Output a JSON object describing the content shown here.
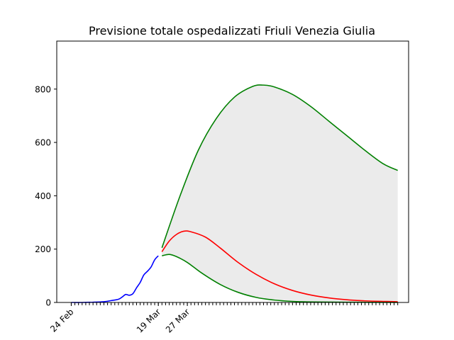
{
  "chart_data": {
    "type": "line",
    "title": "Previsione totale ospedalizzati Friuli Venezia Giulia",
    "xlabel": "",
    "ylabel": "",
    "x_axis": {
      "type": "date",
      "range": [
        "2020-02-20",
        "2020-05-27"
      ],
      "labeled_ticks": [
        {
          "date": "2020-02-24",
          "label": "24 Feb"
        },
        {
          "date": "2020-03-19",
          "label": "19 Mar"
        },
        {
          "date": "2020-03-27",
          "label": "27 Mar"
        }
      ],
      "minor_ticks": "daily, 2020-02-24 to 2020-05-24",
      "tick_label_rotation": -45
    },
    "y_axis": {
      "range": [
        0,
        980
      ],
      "ticks": [
        0,
        200,
        400,
        600,
        800
      ]
    },
    "grid": false,
    "legend": "none",
    "band": {
      "color": "#ebebeb",
      "between": [
        "green-upper",
        "green-lower"
      ]
    },
    "series": [
      {
        "id": "observed",
        "color": "#0000ff",
        "points": [
          [
            "2020-02-24",
            0
          ],
          [
            "2020-02-27",
            0
          ],
          [
            "2020-03-01",
            1
          ],
          [
            "2020-03-04",
            3
          ],
          [
            "2020-03-06",
            7
          ],
          [
            "2020-03-08",
            12
          ],
          [
            "2020-03-09",
            20
          ],
          [
            "2020-03-10",
            30
          ],
          [
            "2020-03-11",
            27
          ],
          [
            "2020-03-12",
            33
          ],
          [
            "2020-03-13",
            55
          ],
          [
            "2020-03-14",
            75
          ],
          [
            "2020-03-15",
            103
          ],
          [
            "2020-03-16",
            117
          ],
          [
            "2020-03-17",
            133
          ],
          [
            "2020-03-18",
            160
          ],
          [
            "2020-03-19",
            175
          ]
        ]
      },
      {
        "id": "red-central",
        "color": "#ff0000",
        "points": [
          [
            "2020-03-20",
            190
          ],
          [
            "2020-03-22",
            230
          ],
          [
            "2020-03-24",
            255
          ],
          [
            "2020-03-26",
            267
          ],
          [
            "2020-03-28",
            265
          ],
          [
            "2020-04-01",
            245
          ],
          [
            "2020-04-05",
            205
          ],
          [
            "2020-04-10",
            150
          ],
          [
            "2020-04-15",
            105
          ],
          [
            "2020-04-20",
            70
          ],
          [
            "2020-04-25",
            45
          ],
          [
            "2020-04-30",
            28
          ],
          [
            "2020-05-05",
            17
          ],
          [
            "2020-05-10",
            10
          ],
          [
            "2020-05-15",
            6
          ],
          [
            "2020-05-20",
            4
          ],
          [
            "2020-05-24",
            3
          ]
        ]
      },
      {
        "id": "green-upper",
        "color": "#008000",
        "points": [
          [
            "2020-03-20",
            205
          ],
          [
            "2020-03-25",
            400
          ],
          [
            "2020-03-30",
            570
          ],
          [
            "2020-04-04",
            690
          ],
          [
            "2020-04-09",
            770
          ],
          [
            "2020-04-14",
            810
          ],
          [
            "2020-04-17",
            815
          ],
          [
            "2020-04-20",
            808
          ],
          [
            "2020-04-25",
            780
          ],
          [
            "2020-04-30",
            735
          ],
          [
            "2020-05-05",
            680
          ],
          [
            "2020-05-10",
            625
          ],
          [
            "2020-05-15",
            570
          ],
          [
            "2020-05-20",
            520
          ],
          [
            "2020-05-24",
            495
          ]
        ]
      },
      {
        "id": "green-lower",
        "color": "#008000",
        "points": [
          [
            "2020-03-20",
            175
          ],
          [
            "2020-03-22",
            180
          ],
          [
            "2020-03-24",
            172
          ],
          [
            "2020-03-27",
            150
          ],
          [
            "2020-03-31",
            110
          ],
          [
            "2020-04-05",
            68
          ],
          [
            "2020-04-10",
            38
          ],
          [
            "2020-04-15",
            19
          ],
          [
            "2020-04-20",
            9
          ],
          [
            "2020-04-25",
            4
          ],
          [
            "2020-05-01",
            2
          ],
          [
            "2020-05-10",
            1
          ],
          [
            "2020-05-24",
            0
          ]
        ]
      }
    ]
  }
}
